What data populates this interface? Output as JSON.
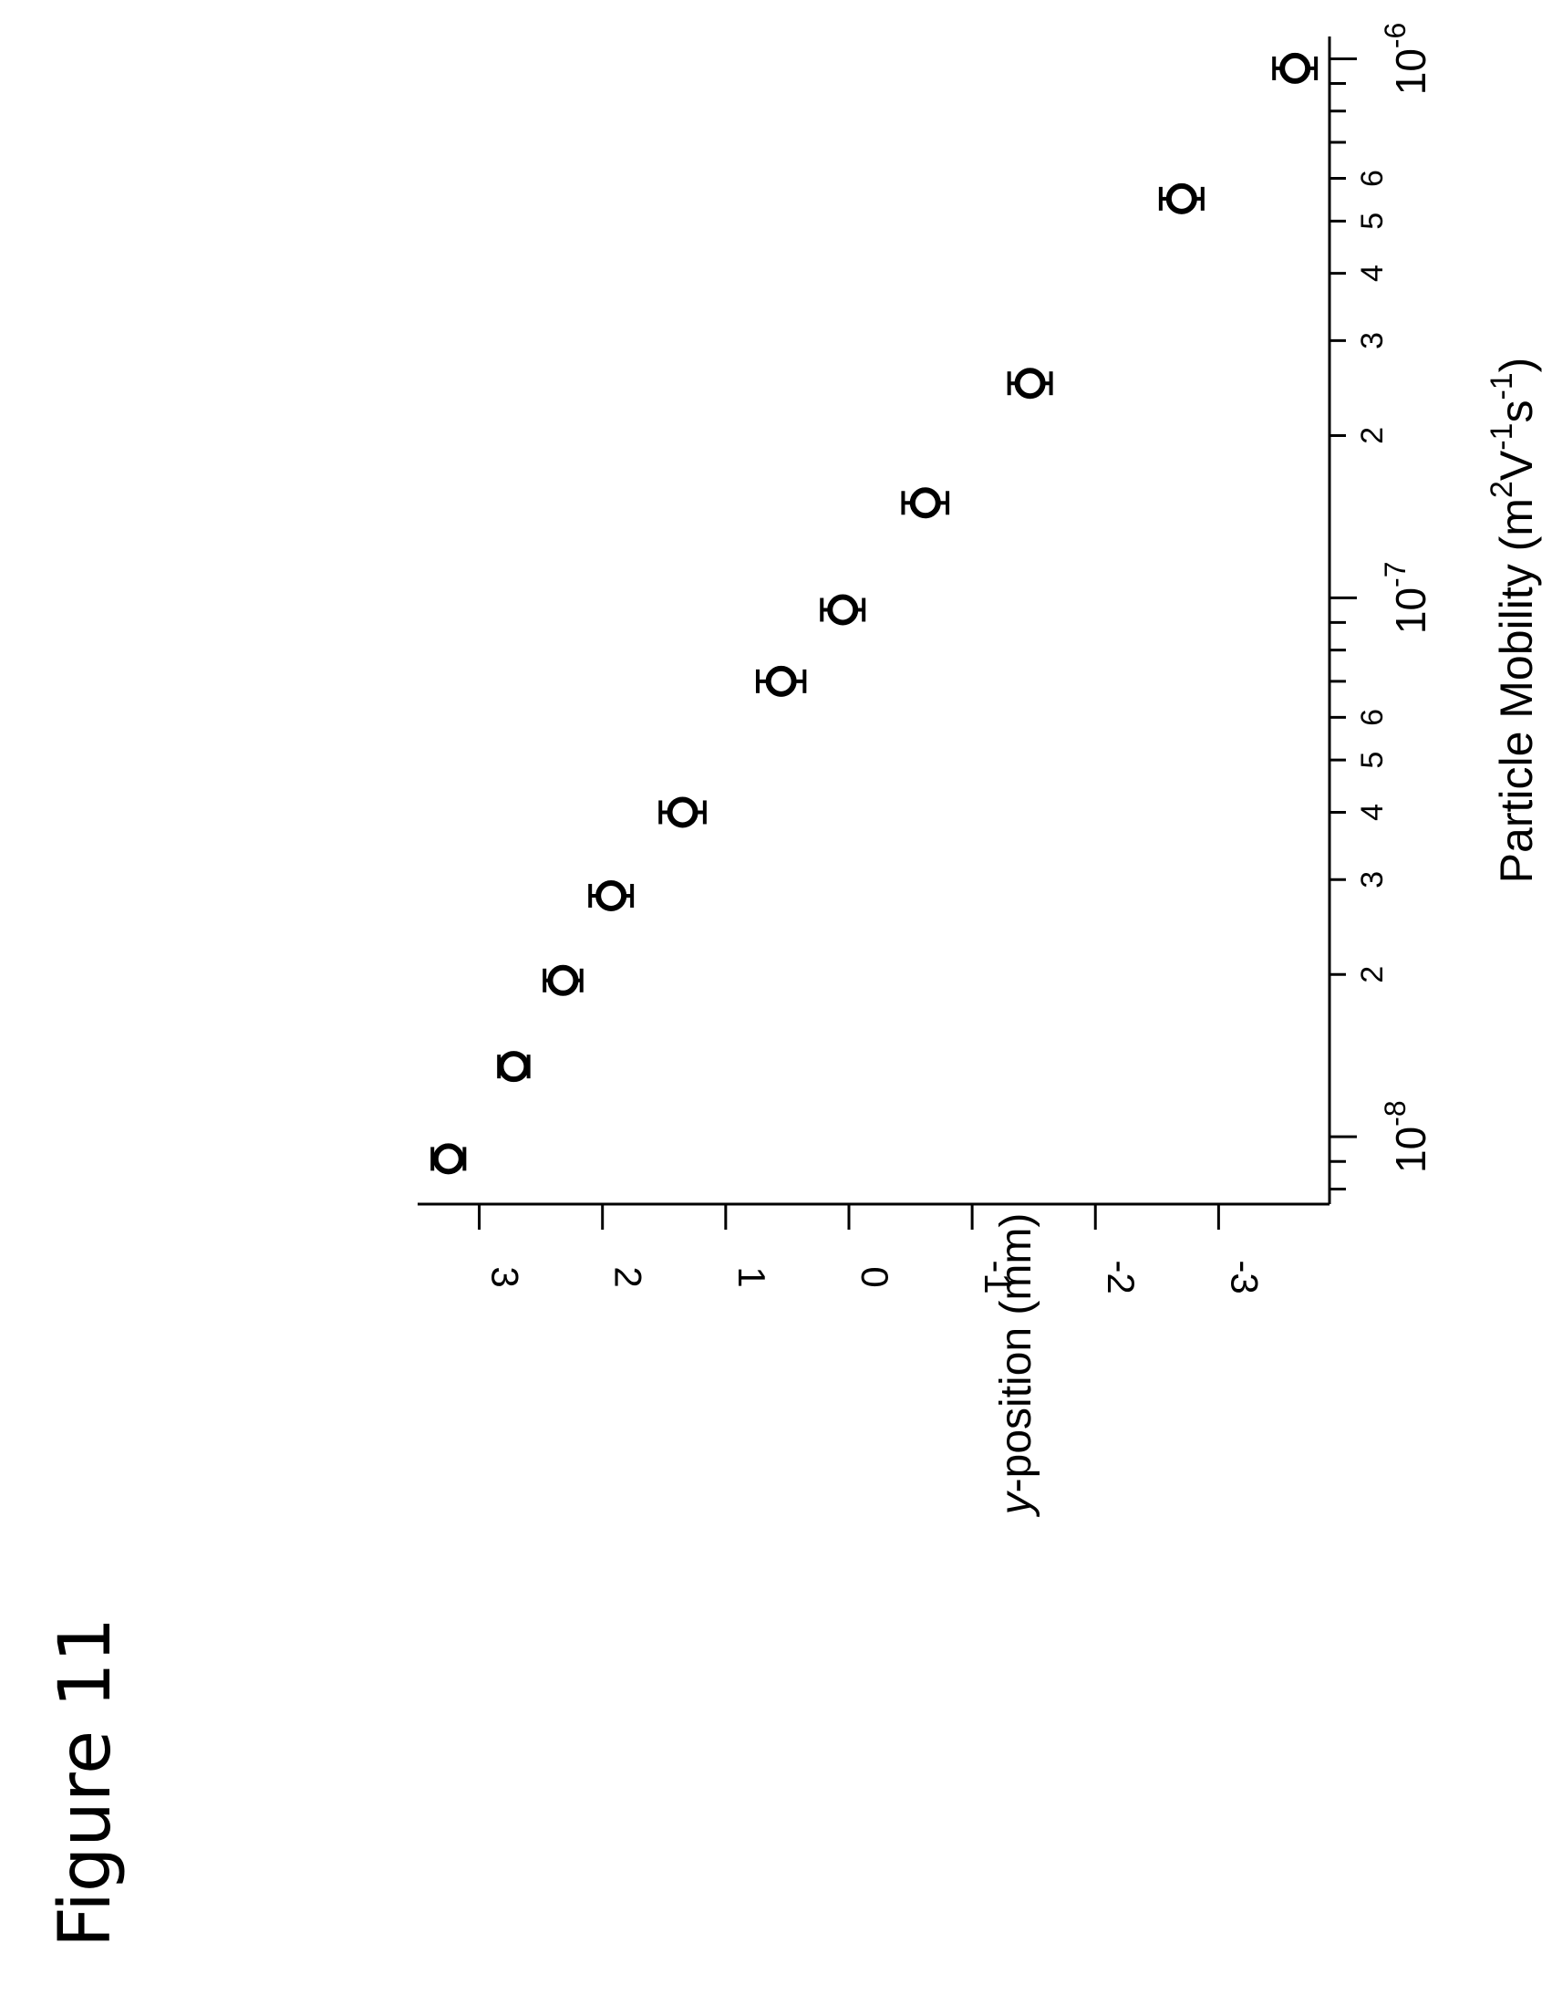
{
  "figure": {
    "title": "Figure 11"
  },
  "chart_data": {
    "type": "scatter",
    "title": "",
    "xlabel": "Particle Mobility (m²V⁻¹s⁻¹)",
    "xlabel_parts": {
      "main": "Particle Mobility (m",
      "sup1": "2",
      "mid1": "V",
      "sup2": "-1",
      "mid2": "s",
      "sup3": "-1",
      "end": ")"
    },
    "ylabel": "y-position (mm)",
    "ylabel_parts": {
      "italic": "y",
      "rest": "-position (mm)"
    },
    "x_scale": "log",
    "xlim": [
      7.5e-09,
      1.1e-06
    ],
    "ylim": [
      -3.9,
      3.5
    ],
    "x_major_ticks": [
      {
        "value": 1e-08,
        "base": "10",
        "exp": "-8"
      },
      {
        "value": 1e-07,
        "base": "10",
        "exp": "-7"
      },
      {
        "value": 1e-06,
        "base": "10",
        "exp": "-6"
      }
    ],
    "x_minor_labeled_ticks": [
      {
        "value": 2e-08,
        "label": "2"
      },
      {
        "value": 3e-08,
        "label": "3"
      },
      {
        "value": 4e-08,
        "label": "4"
      },
      {
        "value": 5e-08,
        "label": "5"
      },
      {
        "value": 6e-08,
        "label": "6"
      },
      {
        "value": 2e-07,
        "label": "2"
      },
      {
        "value": 3e-07,
        "label": "3"
      },
      {
        "value": 4e-07,
        "label": "4"
      },
      {
        "value": 5e-07,
        "label": "5"
      },
      {
        "value": 6e-07,
        "label": "6"
      }
    ],
    "y_ticks": [
      {
        "value": 3,
        "label": "3"
      },
      {
        "value": 2,
        "label": "2"
      },
      {
        "value": 1,
        "label": "1"
      },
      {
        "value": 0,
        "label": "0"
      },
      {
        "value": -1,
        "label": "-1"
      },
      {
        "value": -2,
        "label": "-2"
      },
      {
        "value": -3,
        "label": "-3"
      }
    ],
    "grid": false,
    "legend": "none",
    "marker": "open-circle",
    "points": [
      {
        "x": 9.1e-09,
        "y": 3.25,
        "err": 0.13
      },
      {
        "x": 1.35e-08,
        "y": 2.72,
        "err": 0.12
      },
      {
        "x": 1.95e-08,
        "y": 2.32,
        "err": 0.15
      },
      {
        "x": 2.8e-08,
        "y": 1.93,
        "err": 0.17
      },
      {
        "x": 4e-08,
        "y": 1.35,
        "err": 0.18
      },
      {
        "x": 7e-08,
        "y": 0.55,
        "err": 0.19
      },
      {
        "x": 9.5e-08,
        "y": 0.05,
        "err": 0.17
      },
      {
        "x": 1.5e-07,
        "y": -0.62,
        "err": 0.18
      },
      {
        "x": 2.5e-07,
        "y": -1.47,
        "err": 0.17
      },
      {
        "x": 5.5e-07,
        "y": -2.7,
        "err": 0.17
      },
      {
        "x": 9.6e-07,
        "y": -3.62,
        "err": 0.17
      }
    ]
  }
}
